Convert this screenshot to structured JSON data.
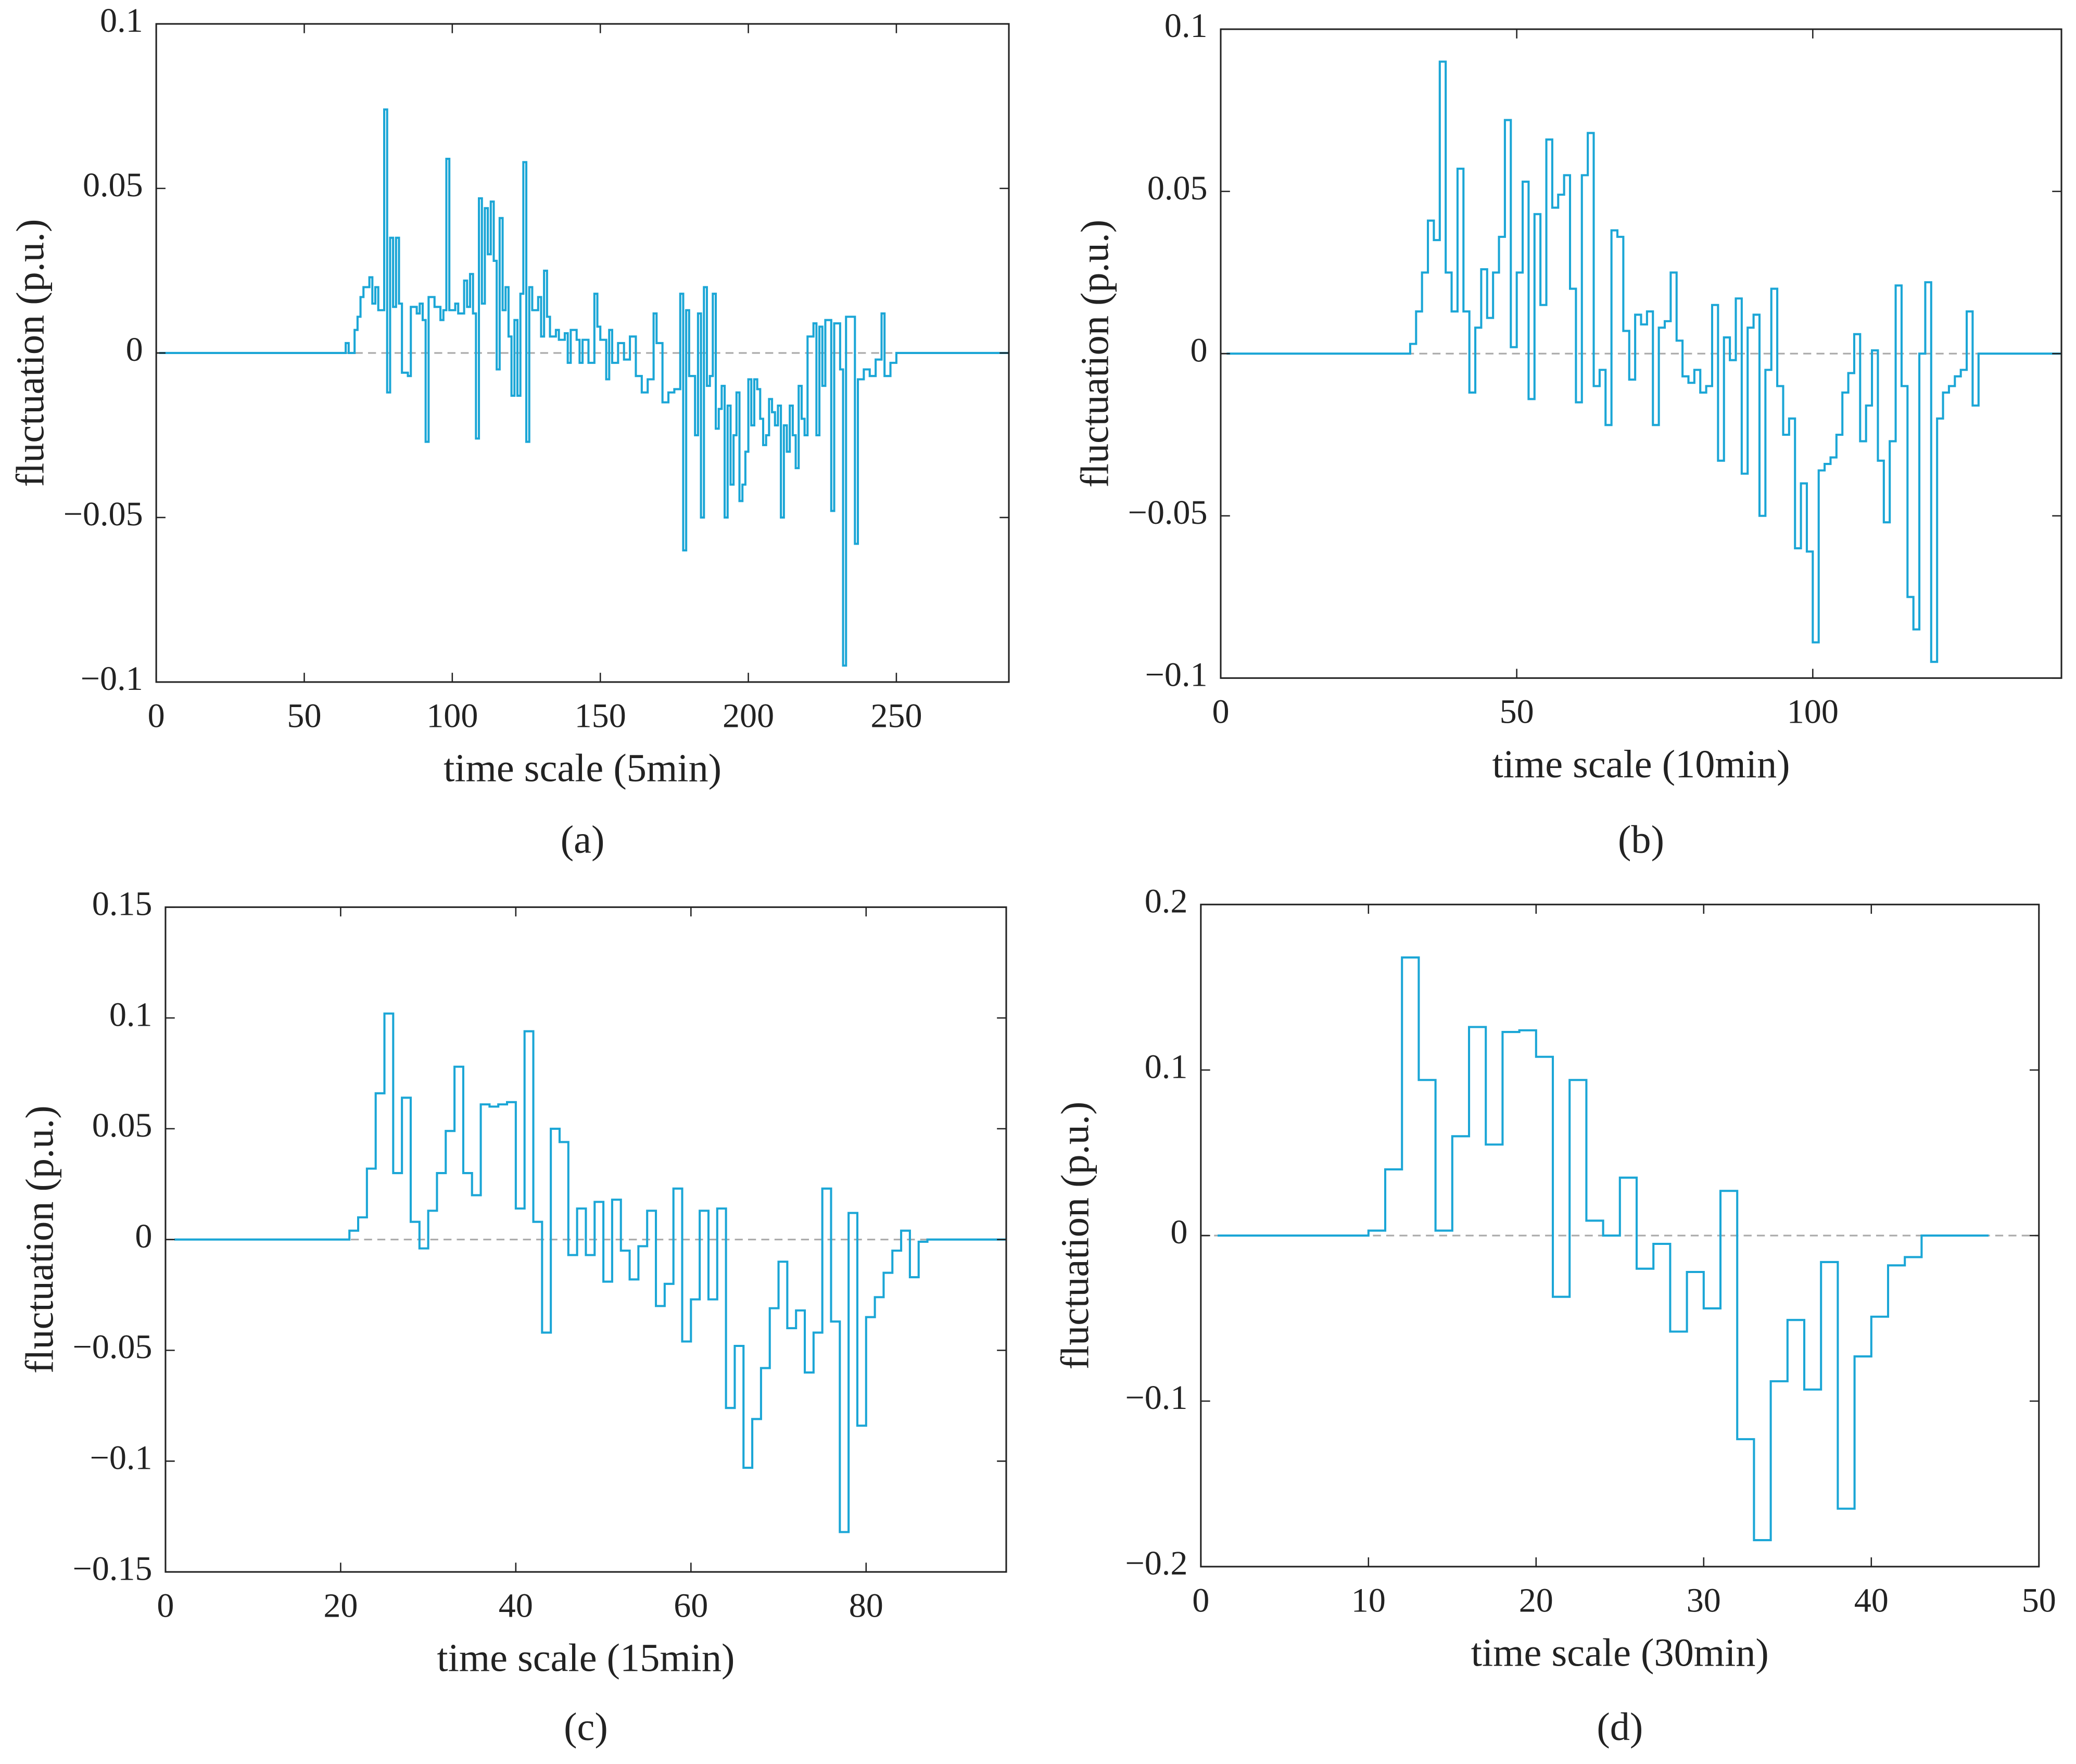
{
  "chart_data": [
    {
      "type": "line",
      "panel_label": "(a)",
      "xlabel": "time scale (5min)",
      "ylabel": "fluctuation (p.u.)",
      "color": "#1ba6d6",
      "zero_line": true,
      "xlim": [
        0,
        288
      ],
      "xticks": [
        0,
        50,
        100,
        150,
        200,
        250
      ],
      "ylim": [
        -0.1,
        0.1
      ],
      "yticks": [
        {
          "value": -0.1,
          "label": "−0.1"
        },
        {
          "value": -0.05,
          "label": "−0.05"
        },
        0,
        0.05,
        0.1
      ],
      "x": [
        1,
        64,
        65,
        67,
        68,
        69,
        70,
        72,
        73,
        74,
        75,
        77,
        78,
        79,
        80,
        81,
        82,
        83,
        85,
        86,
        88,
        89,
        90,
        91,
        92,
        94,
        96,
        97,
        98,
        99,
        101,
        102,
        104,
        105,
        106,
        107,
        108,
        109,
        110,
        111,
        112,
        113,
        114,
        115,
        116,
        117,
        118,
        119,
        120,
        121,
        122,
        123,
        124,
        125,
        126,
        127,
        129,
        130,
        131,
        132,
        133,
        135,
        136,
        138,
        139,
        140,
        142,
        143,
        144,
        146,
        148,
        149,
        150,
        152,
        153,
        154,
        156,
        158,
        160,
        162,
        164,
        166,
        168,
        169,
        171,
        173,
        175,
        177,
        178,
        179,
        180,
        182,
        183,
        184,
        185,
        186,
        187,
        188,
        189,
        190,
        191,
        192,
        193,
        194,
        195,
        196,
        197,
        198,
        199,
        200,
        201,
        202,
        203,
        204,
        205,
        206,
        207,
        208,
        209,
        210,
        211,
        212,
        213,
        214,
        215,
        216,
        217,
        218,
        219,
        220,
        222,
        223,
        224,
        225,
        226,
        228,
        229,
        231,
        232,
        233,
        235,
        236,
        237,
        239,
        241,
        243,
        245,
        246,
        248,
        250,
        288
      ],
      "values": [
        0,
        0.003,
        0,
        0.007,
        0.011,
        0.017,
        0.02,
        0.023,
        0.015,
        0.02,
        0.013,
        0.074,
        -0.012,
        0.035,
        0.014,
        0.035,
        0.015,
        -0.006,
        -0.007,
        0.014,
        0.012,
        0.015,
        0.01,
        -0.027,
        0.017,
        0.014,
        0.01,
        0.013,
        0.059,
        0.013,
        0.015,
        0.012,
        0.022,
        0.014,
        0.024,
        0.012,
        -0.026,
        0.047,
        0.015,
        0.044,
        0.03,
        0.046,
        0.028,
        -0.005,
        0.041,
        0.013,
        0.02,
        0.005,
        -0.013,
        0.01,
        -0.013,
        0.018,
        0.058,
        -0.027,
        0.02,
        0.013,
        0.017,
        0.005,
        0.025,
        0.011,
        0.005,
        0.007,
        0.004,
        0.006,
        -0.003,
        0.007,
        0.004,
        -0.003,
        0.004,
        -0.003,
        0.018,
        0.008,
        0.004,
        -0.008,
        0.007,
        -0.003,
        0.003,
        -0.002,
        0.005,
        -0.007,
        -0.012,
        -0.008,
        0.012,
        0.003,
        -0.015,
        -0.012,
        -0.011,
        0.018,
        -0.06,
        0.013,
        -0.007,
        -0.025,
        0.012,
        -0.05,
        0.02,
        -0.01,
        -0.007,
        0.018,
        -0.023,
        -0.017,
        -0.01,
        -0.05,
        -0.016,
        -0.04,
        -0.025,
        -0.012,
        -0.045,
        -0.04,
        -0.03,
        -0.008,
        -0.022,
        -0.008,
        -0.011,
        -0.02,
        -0.028,
        -0.025,
        -0.014,
        -0.018,
        -0.022,
        -0.016,
        -0.05,
        -0.022,
        -0.03,
        -0.016,
        -0.025,
        -0.035,
        -0.01,
        -0.02,
        -0.025,
        0.005,
        0.009,
        -0.025,
        0.008,
        -0.01,
        0.01,
        -0.048,
        0.009,
        -0.005,
        -0.095,
        0.011,
        0.011,
        -0.058,
        -0.008,
        -0.005,
        -0.007,
        -0.002,
        0.012,
        -0.007,
        -0.003,
        0,
        0
      ]
    },
    {
      "type": "line",
      "panel_label": "(b)",
      "xlabel": "time scale (10min)",
      "ylabel": "fluctuation (p.u.)",
      "color": "#1ba6d6",
      "zero_line": true,
      "xlim": [
        0,
        142
      ],
      "xticks": [
        0,
        50,
        100
      ],
      "ylim": [
        -0.1,
        0.1
      ],
      "yticks": [
        {
          "value": -0.1,
          "label": "−0.1"
        },
        {
          "value": -0.05,
          "label": "−0.05"
        },
        0,
        0.05,
        0.1
      ],
      "x": [
        1,
        32,
        33,
        34,
        35,
        36,
        37,
        38,
        39,
        40,
        41,
        42,
        43,
        44,
        45,
        46,
        47,
        48,
        49,
        50,
        51,
        52,
        53,
        54,
        55,
        56,
        57,
        58,
        59,
        60,
        61,
        62,
        63,
        64,
        65,
        66,
        67,
        68,
        69,
        70,
        71,
        72,
        73,
        74,
        75,
        76,
        77,
        78,
        79,
        80,
        81,
        82,
        83,
        84,
        85,
        86,
        87,
        88,
        89,
        90,
        91,
        92,
        93,
        94,
        95,
        96,
        97,
        98,
        99,
        100,
        101,
        102,
        103,
        104,
        105,
        106,
        107,
        108,
        109,
        110,
        111,
        112,
        113,
        114,
        115,
        116,
        117,
        118,
        119,
        120,
        121,
        122,
        123,
        124,
        125,
        126,
        127,
        128,
        142
      ],
      "values": [
        0,
        0.003,
        0.013,
        0.025,
        0.041,
        0.035,
        0.09,
        0.025,
        0.013,
        0.057,
        0.013,
        -0.012,
        0.008,
        0.026,
        0.011,
        0.025,
        0.036,
        0.072,
        0.002,
        0.025,
        0.053,
        -0.014,
        0.043,
        0.015,
        0.066,
        0.045,
        0.049,
        0.055,
        0.02,
        -0.015,
        0.055,
        0.068,
        -0.01,
        -0.005,
        -0.022,
        0.038,
        0.036,
        0.007,
        -0.008,
        0.012,
        0.009,
        0.013,
        -0.022,
        0.008,
        0.01,
        0.025,
        0.004,
        -0.007,
        -0.009,
        -0.005,
        -0.012,
        -0.01,
        0.015,
        -0.033,
        0.005,
        -0.002,
        0.017,
        -0.037,
        0.008,
        0.012,
        -0.05,
        -0.005,
        0.02,
        -0.01,
        -0.025,
        -0.02,
        -0.06,
        -0.04,
        -0.061,
        -0.089,
        -0.036,
        -0.034,
        -0.032,
        -0.025,
        -0.012,
        -0.006,
        0.006,
        -0.027,
        -0.016,
        0.001,
        -0.033,
        -0.052,
        -0.027,
        0.021,
        -0.01,
        -0.075,
        -0.085,
        0,
        0.022,
        -0.095,
        -0.02,
        -0.012,
        -0.01,
        -0.007,
        -0.005,
        0.013,
        -0.016,
        0,
        0
      ]
    },
    {
      "type": "line",
      "panel_label": "(c)",
      "xlabel": "time scale (15min)",
      "ylabel": "fluctuation (p.u.)",
      "color": "#1ba6d6",
      "zero_line": true,
      "xlim": [
        0,
        96
      ],
      "xticks": [
        0,
        20,
        40,
        60,
        80
      ],
      "ylim": [
        -0.15,
        0.15
      ],
      "yticks": [
        {
          "value": -0.15,
          "label": "−0.15"
        },
        {
          "value": -0.1,
          "label": "−0.1"
        },
        {
          "value": -0.05,
          "label": "−0.05"
        },
        0,
        0.05,
        0.1,
        0.15
      ],
      "x": [
        1,
        21,
        22,
        23,
        24,
        25,
        26,
        27,
        28,
        29,
        30,
        31,
        32,
        33,
        34,
        35,
        36,
        37,
        38,
        39,
        40,
        41,
        42,
        43,
        44,
        45,
        46,
        47,
        48,
        49,
        50,
        51,
        52,
        53,
        54,
        55,
        56,
        57,
        58,
        59,
        60,
        61,
        62,
        63,
        64,
        65,
        66,
        67,
        68,
        69,
        70,
        71,
        72,
        73,
        74,
        75,
        76,
        77,
        78,
        79,
        80,
        81,
        82,
        83,
        84,
        85,
        86,
        87,
        96
      ],
      "values": [
        0,
        0.004,
        0.01,
        0.032,
        0.066,
        0.102,
        0.03,
        0.064,
        0.008,
        -0.004,
        0.013,
        0.03,
        0.049,
        0.078,
        0.03,
        0.02,
        0.061,
        0.06,
        0.061,
        0.062,
        0.014,
        0.094,
        0.008,
        -0.042,
        0.05,
        0.044,
        -0.007,
        0.014,
        -0.007,
        0.017,
        -0.019,
        0.018,
        -0.005,
        -0.018,
        -0.003,
        0.013,
        -0.03,
        -0.02,
        0.023,
        -0.046,
        -0.027,
        0.013,
        -0.027,
        0.014,
        -0.076,
        -0.048,
        -0.103,
        -0.081,
        -0.058,
        -0.031,
        -0.01,
        -0.04,
        -0.032,
        -0.06,
        -0.042,
        0.023,
        -0.037,
        -0.132,
        0.012,
        -0.084,
        -0.035,
        -0.026,
        -0.015,
        -0.005,
        0.004,
        -0.017,
        -0.001,
        0,
        0
      ]
    },
    {
      "type": "line",
      "panel_label": "(d)",
      "xlabel": "time scale (30min)",
      "ylabel": "fluctuation (p.u.)",
      "color": "#1ba6d6",
      "zero_line": true,
      "xlim": [
        0,
        50
      ],
      "xticks": [
        0,
        10,
        20,
        30,
        40,
        50
      ],
      "ylim": [
        -0.2,
        0.2
      ],
      "yticks": [
        {
          "value": -0.2,
          "label": "−0.2"
        },
        {
          "value": -0.1,
          "label": "−0.1"
        },
        0,
        0.1,
        0.2
      ],
      "x": [
        1,
        10,
        11,
        12,
        13,
        14,
        15,
        16,
        17,
        18,
        19,
        20,
        21,
        22,
        23,
        24,
        25,
        26,
        27,
        28,
        29,
        30,
        31,
        32,
        33,
        34,
        35,
        36,
        37,
        38,
        39,
        40,
        41,
        42,
        43,
        47
      ],
      "values": [
        0,
        0.003,
        0.04,
        0.168,
        0.094,
        0.003,
        0.06,
        0.126,
        0.055,
        0.123,
        0.124,
        0.108,
        -0.037,
        0.094,
        0.009,
        0,
        0.035,
        -0.02,
        -0.005,
        -0.058,
        -0.022,
        -0.044,
        0.027,
        -0.123,
        -0.184,
        -0.088,
        -0.051,
        -0.093,
        -0.016,
        -0.165,
        -0.073,
        -0.049,
        -0.018,
        -0.013,
        0,
        0
      ]
    }
  ]
}
